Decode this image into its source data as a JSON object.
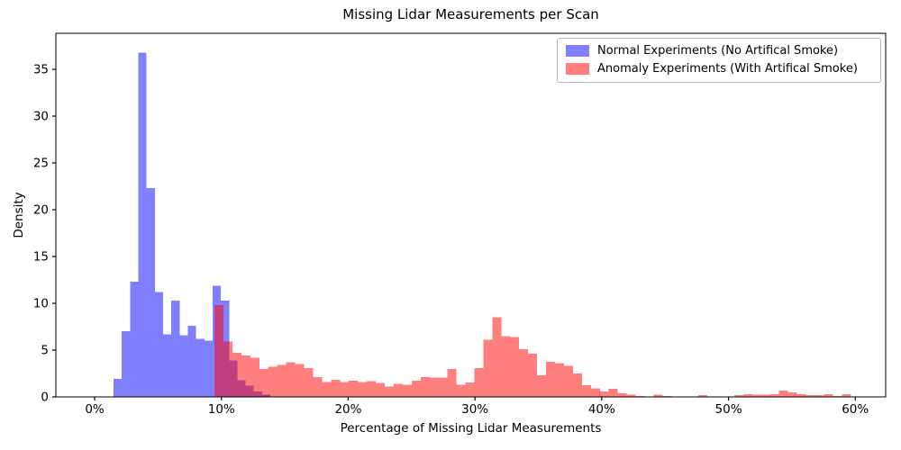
{
  "figure": {
    "background": "#ffffff"
  },
  "chart_data": {
    "type": "histogram",
    "title": "Missing Lidar Measurements per Scan",
    "xlabel": "Percentage of Missing Lidar Measurements",
    "ylabel": "Density",
    "xlim": [
      -3.06,
      62.4
    ],
    "ylim": [
      0,
      38.85
    ],
    "xticks": [
      0,
      10,
      20,
      30,
      40,
      50,
      60
    ],
    "xtick_labels": [
      "0%",
      "10%",
      "20%",
      "30%",
      "40%",
      "50%",
      "60%"
    ],
    "yticks": [
      0,
      5,
      10,
      15,
      20,
      25,
      30,
      35
    ],
    "ytick_labels": [
      "0",
      "5",
      "10",
      "15",
      "20",
      "25",
      "30",
      "35"
    ],
    "grid": false,
    "legend": {
      "position": "upper-right",
      "border_color": "#b7b7b7"
    },
    "axis_color": "#000000",
    "series": [
      {
        "name": "Normal Experiments (No Artifical Smoke)",
        "color": "#0000ff",
        "alpha": 0.5,
        "bin_start_pct": 1.49,
        "bin_width_pct": 0.651,
        "heights": [
          1.9,
          7.0,
          12.3,
          36.8,
          22.3,
          11.2,
          6.7,
          10.3,
          6.6,
          7.6,
          6.2,
          6.0,
          11.9,
          10.3,
          3.9,
          1.8,
          1.2,
          0.6,
          0.25
        ]
      },
      {
        "name": "Anomaly Experiments (With Artifical Smoke)",
        "color": "#ff0000",
        "alpha": 0.5,
        "bin_start_pct": 9.45,
        "bin_width_pct": 0.707,
        "heights": [
          9.8,
          5.9,
          4.7,
          4.4,
          4.2,
          3.0,
          3.2,
          3.4,
          3.7,
          3.5,
          3.1,
          2.1,
          1.6,
          1.85,
          1.6,
          1.75,
          1.6,
          1.7,
          1.5,
          1.1,
          1.4,
          1.3,
          1.75,
          2.1,
          2.05,
          2.05,
          3.0,
          1.3,
          1.55,
          3.1,
          6.1,
          8.5,
          6.5,
          6.4,
          5.1,
          4.6,
          2.3,
          3.75,
          3.6,
          3.3,
          2.5,
          1.25,
          0.9,
          0.6,
          0.85,
          0.4,
          0.25,
          0.1,
          0.05,
          0.25,
          0.1,
          0,
          0,
          0.05,
          0.2,
          0.05,
          0,
          0.05,
          0.2,
          0.3,
          0.25,
          0.25,
          0.3,
          0.65,
          0.5,
          0.3,
          0.2,
          0.2,
          0.3,
          0.1,
          0.3
        ]
      }
    ]
  }
}
